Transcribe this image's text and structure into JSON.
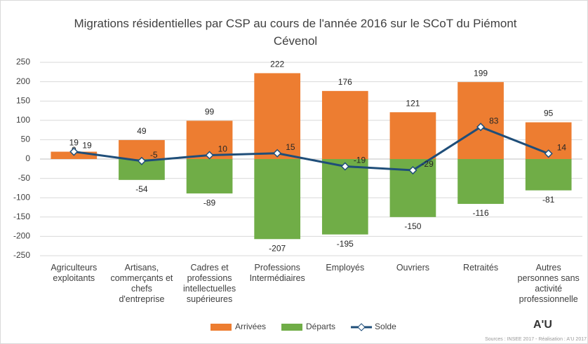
{
  "chart_data": {
    "type": "bar",
    "title": "Migrations résidentielles par CSP au cours de l'année 2016 sur le SCoT du Piémont Cévenol",
    "categories": [
      "Agriculteurs exploitants",
      "Artisans, commerçants et chefs d'entreprise",
      "Cadres et professions intellectuelles supérieures",
      "Professions Intermédiaires",
      "Employés",
      "Ouvriers",
      "Retraités",
      "Autres personnes sans activité professionnelle"
    ],
    "series": [
      {
        "name": "Arrivées",
        "color": "#ed7d31",
        "values": [
          19,
          49,
          99,
          222,
          176,
          121,
          199,
          95
        ]
      },
      {
        "name": "Départs",
        "color": "#70ad47",
        "values": [
          0,
          -54,
          -89,
          -207,
          -195,
          -150,
          -116,
          -81
        ]
      },
      {
        "name": "Solde",
        "color": "#1f4e79",
        "type": "line",
        "values": [
          19,
          -5,
          10,
          15,
          -19,
          -29,
          83,
          14
        ]
      }
    ],
    "ylim": [
      -250,
      250
    ],
    "yticks": [
      -250,
      -200,
      -150,
      -100,
      -50,
      0,
      50,
      100,
      150,
      200,
      250
    ],
    "grid": true,
    "legend": "bottom",
    "source": "Sources : INSEE 2017 - Réalisation : A'U 2017",
    "logo": "A'U"
  }
}
